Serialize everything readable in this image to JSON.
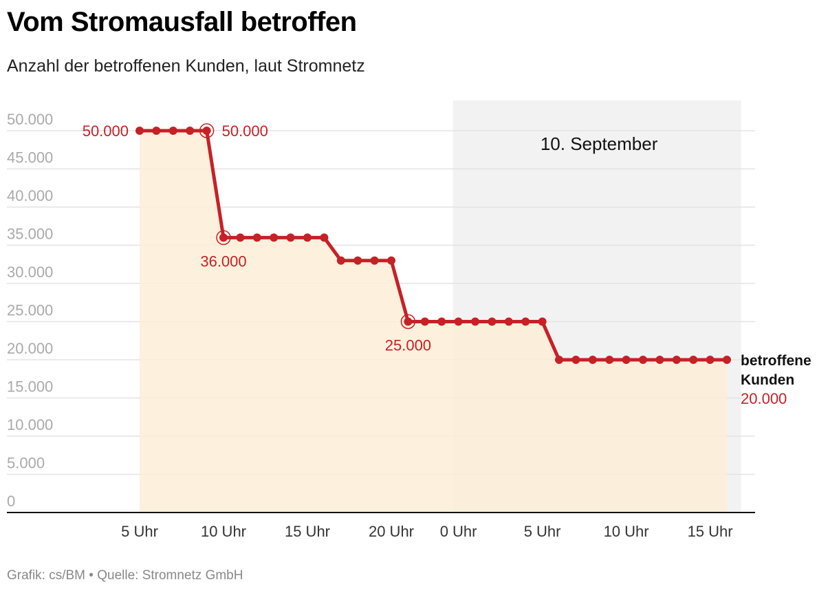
{
  "header": {
    "title": "Vom Stromausfall betroffen",
    "subtitle": "Anzahl der betroffenen Kunden, laut Stromnetz"
  },
  "footer": {
    "source": "Grafik: cs/BM • Quelle: Stromnetz GmbH"
  },
  "colors": {
    "line": "#c62127",
    "area": "#fdeed6",
    "shade": "#f2f2f2",
    "grid": "#e3e3e3"
  },
  "chart_data": {
    "type": "line",
    "title": "Vom Stromausfall betroffen",
    "subtitle": "Anzahl der betroffenen Kunden, laut Stromnetz",
    "x_unit": "hours (day 1 = 0..24, day 2 = 24..)",
    "xlim": [
      -2,
      41
    ],
    "ylim": [
      0,
      50000
    ],
    "y_ticks": [
      0,
      5000,
      10000,
      15000,
      20000,
      25000,
      30000,
      35000,
      40000,
      45000,
      50000
    ],
    "y_tick_labels": [
      "0",
      "5.000",
      "10.000",
      "15.000",
      "20.000",
      "25.000",
      "30.000",
      "35.000",
      "40.000",
      "45.000",
      "50.000"
    ],
    "x_ticks": [
      5,
      10,
      15,
      20,
      24,
      29,
      34,
      39
    ],
    "x_tick_labels": [
      "5 Uhr",
      "10 Uhr",
      "15 Uhr",
      "20 Uhr",
      "0 Uhr",
      "5 Uhr",
      "10 Uhr",
      "15 Uhr"
    ],
    "shaded_region": {
      "from": 24,
      "to": 40.6,
      "label": "10. September"
    },
    "grid": true,
    "series": [
      {
        "name": "betroffene Kunden",
        "end_label": [
          "betroffene",
          "Kunden"
        ],
        "end_value_label": "20.000",
        "x": [
          5,
          6,
          7,
          8,
          9,
          10,
          11,
          12,
          13,
          14,
          15,
          16,
          17,
          18,
          19,
          20,
          21,
          22,
          23,
          24,
          25,
          26,
          27,
          28,
          29,
          30,
          31,
          32,
          33,
          34,
          35,
          36,
          37,
          38,
          39,
          40
        ],
        "y": [
          50000,
          50000,
          50000,
          50000,
          50000,
          36000,
          36000,
          36000,
          36000,
          36000,
          36000,
          36000,
          33000,
          33000,
          33000,
          33000,
          25000,
          25000,
          25000,
          25000,
          25000,
          25000,
          25000,
          25000,
          25000,
          20000,
          20000,
          20000,
          20000,
          20000,
          20000,
          20000,
          20000,
          20000,
          20000,
          20000
        ]
      }
    ],
    "annotations": [
      {
        "x": 5,
        "y": 50000,
        "text": "50.000",
        "side": "left",
        "ring": false
      },
      {
        "x": 9,
        "y": 50000,
        "text": "50.000",
        "side": "right",
        "ring": true
      },
      {
        "x": 10,
        "y": 36000,
        "text": "36.000",
        "side": "below",
        "ring": true
      },
      {
        "x": 21,
        "y": 25000,
        "text": "25.000",
        "side": "below",
        "ring": true
      }
    ]
  }
}
